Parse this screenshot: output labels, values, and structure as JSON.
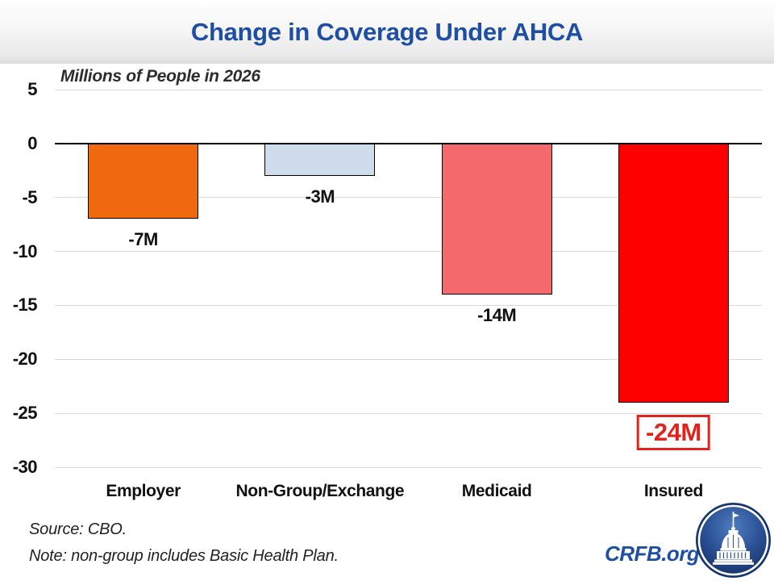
{
  "slide": {
    "title": "Change in Coverage Under AHCA",
    "subtitle": "Millions of People in 2026"
  },
  "chart_data": {
    "type": "bar",
    "title": "Change in Coverage Under AHCA",
    "axis_unit_label": "Millions of People in 2026",
    "categories": [
      "Employer",
      "Non-Group/Exchange",
      "Medicaid",
      "Insured"
    ],
    "values": [
      -7,
      -3,
      -14,
      -24
    ],
    "data_labels": [
      "-7M",
      "-3M",
      "-14M",
      "-24M"
    ],
    "bar_colors": [
      "#F0690F",
      "#CFDCEC",
      "#F4696C",
      "#FE0000"
    ],
    "highlight_index": 3,
    "ylim": [
      -30,
      5
    ],
    "yticks": [
      5,
      0,
      -5,
      -10,
      -15,
      -20,
      -25,
      -30
    ],
    "grid": true,
    "legend": false
  },
  "footer": {
    "source": "Source: CBO.",
    "note": "Note: non-group includes Basic Health Plan.",
    "brand": "CRFB.org",
    "logo_icon": "capitol-icon"
  },
  "colors": {
    "title_blue": "#1F4EA5",
    "brand_blue": "#1F4EA5",
    "highlight_red": "#E0231C",
    "bar_border": "#000000",
    "grid_gray": "#D9D9D9",
    "logo_navy": "#17366E"
  }
}
